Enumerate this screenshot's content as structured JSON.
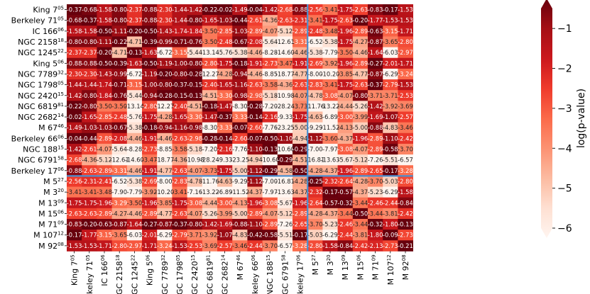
{
  "chart_data": {
    "type": "heatmap",
    "rows": [
      {
        "name": "King 7",
        "sup": "05"
      },
      {
        "name": "Berkeley 71",
        "sup": "05"
      },
      {
        "name": "IC 166",
        "sup": "06"
      },
      {
        "name": "NGC 2158",
        "sup": "18"
      },
      {
        "name": "NGC 1245",
        "sup": "22"
      },
      {
        "name": "King 5",
        "sup": "06"
      },
      {
        "name": "NGC 7789",
        "sup": "32"
      },
      {
        "name": "NGC 1798",
        "sup": "05"
      },
      {
        "name": "NGC 2420",
        "sup": "15"
      },
      {
        "name": "NGC 6819",
        "sup": "81"
      },
      {
        "name": "NGC 2682",
        "sup": "14"
      },
      {
        "name": "M 67",
        "sup": "46"
      },
      {
        "name": "Berkeley 66",
        "sup": "06"
      },
      {
        "name": "NGC 188",
        "sup": "15"
      },
      {
        "name": "NGC 6791",
        "sup": "58"
      },
      {
        "name": "Berkeley 17",
        "sup": "06"
      },
      {
        "name": "M 5",
        "sup": "27"
      },
      {
        "name": "M 3",
        "sup": "20"
      },
      {
        "name": "M 13",
        "sup": "09"
      },
      {
        "name": "M 15",
        "sup": "06"
      },
      {
        "name": "M 71",
        "sup": "09"
      },
      {
        "name": "M 107",
        "sup": "12"
      },
      {
        "name": "M 92",
        "sup": "08"
      }
    ],
    "values": [
      [
        -0.37,
        -0.68,
        -1.58,
        -0.8,
        -2.37,
        -0.88,
        -2.3,
        -1.44,
        -1.42,
        -0.22,
        -0.02,
        -1.49,
        -0.04,
        -1.42,
        -2.68,
        -0.88,
        -2.56,
        -3.41,
        -1.75,
        -2.63,
        -0.83,
        -0.17,
        -1.53
      ],
      [
        -0.68,
        -0.37,
        -1.58,
        -0.8,
        -2.37,
        -0.88,
        -2.3,
        -1.44,
        -0.8,
        -1.65,
        -1.03,
        -0.44,
        -2.61,
        -4.36,
        -2.63,
        -2.31,
        -3.41,
        -1.75,
        -2.63,
        -0.2,
        -1.77,
        -1.53,
        -1.53
      ],
      [
        -1.58,
        -1.58,
        -0.5,
        -1.11,
        -0.2,
        -0.5,
        -1.43,
        -1.74,
        -1.84,
        -3.5,
        -2.85,
        -1.03,
        -2.89,
        -4.07,
        -5.12,
        -2.89,
        -2.48,
        -3.48,
        -1.96,
        -2.89,
        -0.63,
        -3.15,
        -1.71
      ],
      [
        -0.8,
        -0.8,
        -1.11,
        -0.22,
        -4.71,
        -0.39,
        -0.99,
        -0.71,
        -0.76,
        -3.5,
        -2.48,
        -0.67,
        -2.08,
        -5.64,
        -12.61,
        -3.31,
        -6.52,
        -5.38,
        -1.75,
        -4.27,
        -0.87,
        -3.65,
        -2.8
      ],
      [
        -2.37,
        -2.37,
        -0.2,
        -4.71,
        -0.13,
        -1.63,
        -6.72,
        -3.15,
        -5.44,
        -13.14,
        -5.76,
        -5.38,
        -4.46,
        -8.28,
        -14.6,
        -4.46,
        -5.38,
        -7.79,
        -3.5,
        -4.46,
        -1.64,
        -6.03,
        -2.97
      ],
      [
        -0.88,
        -0.88,
        -0.5,
        -0.39,
        -1.63,
        -0.5,
        -1.19,
        -1.0,
        -0.8,
        -2.8,
        -1.75,
        -0.18,
        -1.91,
        -2.73,
        -3.47,
        -1.91,
        -2.69,
        -3.92,
        -1.96,
        -2.89,
        -0.27,
        -2.01,
        -1.71
      ],
      [
        -2.3,
        -2.3,
        -1.43,
        -0.99,
        -6.72,
        -1.19,
        -0.2,
        -0.8,
        -0.28,
        -12.27,
        -4.28,
        -0.94,
        -4.46,
        -8.85,
        -18.77,
        -4.77,
        -8.0,
        -10.2,
        -3.85,
        -4.77,
        -0.87,
        -6.29,
        -3.24
      ],
      [
        -1.44,
        -1.44,
        -1.74,
        -0.71,
        -3.15,
        -1.0,
        -0.8,
        -0.37,
        -0.15,
        -2.4,
        -1.65,
        -1.16,
        -2.63,
        -3.58,
        -4.36,
        -2.63,
        -2.83,
        -3.41,
        -1.75,
        -2.63,
        -0.37,
        -2.79,
        -1.53
      ],
      [
        -1.42,
        -0.8,
        -1.84,
        -0.76,
        -5.44,
        -0.94,
        -0.28,
        -0.15,
        -0.13,
        -4.51,
        -3.3,
        -0.98,
        -2.98,
        -5.18,
        -10.98,
        -4.07,
        -4.78,
        -3.08,
        -4.07,
        -0.8,
        -3.71,
        -3.71,
        -2.53
      ],
      [
        -0.22,
        -0.8,
        -3.5,
        -3.5,
        -13.14,
        -2.8,
        -12.27,
        -2.4,
        -4.51,
        -0.18,
        -1.47,
        -8.3,
        -0.28,
        -7.2,
        -28.24,
        -3.73,
        -11.76,
        -13.22,
        -4.44,
        -5.26,
        -1.42,
        -3.92,
        -3.69
      ],
      [
        -0.02,
        -1.65,
        -2.85,
        -2.48,
        -5.76,
        -1.75,
        -4.28,
        -1.65,
        -3.3,
        -1.47,
        -0.37,
        -3.33,
        -0.14,
        -2.16,
        -9.33,
        -1.75,
        -4.63,
        -6.89,
        -3.0,
        -3.99,
        -1.69,
        -1.07,
        -2.57
      ],
      [
        -1.49,
        -1.03,
        -1.03,
        -0.67,
        -5.38,
        -0.18,
        -0.94,
        -1.16,
        -0.98,
        -8.3,
        -3.33,
        -0.07,
        -2.6,
        -7.76,
        -23.25,
        -5.0,
        -9.29,
        -11.52,
        -4.13,
        -5.0,
        -0.88,
        -4.83,
        -3.46
      ],
      [
        -0.04,
        -0.44,
        -2.89,
        -2.08,
        -4.46,
        -1.91,
        -4.46,
        -2.63,
        -2.98,
        -0.28,
        -0.14,
        -2.6,
        -0.07,
        -0.5,
        -1.1,
        -4.94,
        -1.12,
        -3.6,
        -4.37,
        -1.96,
        -2.89,
        -1.1,
        -2.42
      ],
      [
        -1.42,
        -2.61,
        -4.07,
        -5.64,
        -8.28,
        -2.73,
        -8.85,
        -3.58,
        -5.18,
        -7.2,
        -2.16,
        -7.76,
        -1.1,
        -0.13,
        -10.6,
        -0.29,
        -7.0,
        -7.97,
        -3.08,
        -4.07,
        -2.89,
        -0.58,
        -3.7
      ],
      [
        -2.68,
        -4.36,
        -5.12,
        -12.61,
        -14.6,
        -3.47,
        -18.77,
        -4.36,
        -10.98,
        -28.24,
        -9.33,
        -23.25,
        -4.94,
        -10.6,
        -0.29,
        -4.51,
        -16.81,
        -13.63,
        -5.67,
        -5.12,
        -7.26,
        -5.51,
        -6.57
      ],
      [
        -0.88,
        -2.63,
        -2.89,
        -3.31,
        -4.46,
        -1.91,
        -4.77,
        -2.63,
        -4.07,
        -3.73,
        -1.75,
        -5.0,
        -1.12,
        -0.29,
        -4.58,
        -0.5,
        -4.28,
        -4.37,
        -1.96,
        -2.89,
        -2.65,
        -0.17,
        -3.28
      ],
      [
        -2.56,
        -2.31,
        -2.41,
        -6.52,
        -5.38,
        -2.69,
        -8.0,
        -2.83,
        -4.78,
        -11.76,
        -4.63,
        -9.29,
        -1.12,
        -7.0,
        -16.81,
        -4.28,
        -0.25,
        -2.32,
        -2.64,
        -4.28,
        -3.7,
        -5.03,
        -2.8
      ],
      [
        -3.41,
        -3.41,
        -3.48,
        -7.9,
        -7.79,
        -3.92,
        -10.2,
        -3.41,
        -7.16,
        -13.22,
        -6.89,
        -11.52,
        -4.37,
        -7.97,
        -13.63,
        -4.37,
        -2.32,
        -0.17,
        -0.57,
        -4.37,
        -5.23,
        -6.29,
        -1.58
      ],
      [
        -1.75,
        -1.75,
        -1.96,
        -3.29,
        -3.5,
        -1.96,
        -3.85,
        -1.75,
        -3.08,
        -4.44,
        -3.0,
        -4.13,
        -1.96,
        -3.08,
        -5.67,
        -1.96,
        -2.64,
        -0.57,
        -0.32,
        -3.44,
        -2.46,
        -2.44,
        -0.84
      ],
      [
        -2.63,
        -2.63,
        -2.89,
        -4.27,
        -4.46,
        -2.89,
        -4.77,
        -2.63,
        -4.07,
        -5.26,
        -3.99,
        -5.0,
        -2.89,
        -4.07,
        -5.12,
        -2.89,
        -4.28,
        -4.37,
        -3.44,
        -0.5,
        -3.44,
        -3.81,
        -2.42
      ],
      [
        -0.83,
        -0.2,
        -0.63,
        -0.87,
        -1.64,
        -0.27,
        -0.87,
        -0.37,
        -0.8,
        -1.42,
        -1.69,
        -0.88,
        -1.1,
        -2.89,
        -7.26,
        -2.65,
        -3.7,
        -5.23,
        -2.46,
        -3.44,
        -0.32,
        -1.8,
        -0.13
      ],
      [
        -0.17,
        -1.77,
        -3.15,
        -3.65,
        -6.03,
        -2.01,
        -6.29,
        -2.79,
        -3.71,
        -3.92,
        -1.07,
        -4.83,
        -0.42,
        -0.58,
        -5.51,
        -0.17,
        -5.03,
        -6.29,
        -2.44,
        -3.81,
        -1.8,
        -0.09,
        -2.73
      ],
      [
        -1.53,
        -1.53,
        -1.71,
        -2.8,
        -2.97,
        -1.71,
        -3.24,
        -1.53,
        -2.53,
        -3.69,
        -2.57,
        -3.46,
        -2.44,
        -3.7,
        -6.57,
        -3.28,
        -2.8,
        -1.58,
        -0.84,
        -2.42,
        -2.13,
        -2.73,
        -0.21
      ]
    ],
    "colorbar": {
      "label": "log(p-value)",
      "ticks": [
        -1,
        -2,
        -3,
        -4,
        -5,
        -6
      ],
      "range": [
        -6,
        -0.5
      ],
      "extend": "both"
    },
    "separators": {
      "after_index": 15,
      "color": "#4a90d0"
    },
    "palette": [
      "#fff5f0",
      "#fee0d2",
      "#fcbba1",
      "#fc9272",
      "#fb6a4a",
      "#ef3b2c",
      "#cb181d",
      "#a50f15",
      "#67000d"
    ]
  }
}
